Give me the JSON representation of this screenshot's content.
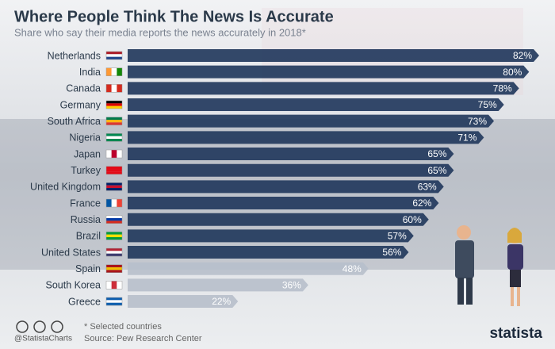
{
  "chart_data": {
    "type": "bar",
    "orientation": "horizontal",
    "title": "Where People Think The News Is Accurate",
    "subtitle": "Share who say their media reports the news accurately in 2018*",
    "categories": [
      "Netherlands",
      "India",
      "Canada",
      "Germany",
      "South Africa",
      "Nigeria",
      "Japan",
      "Turkey",
      "United Kingdom",
      "France",
      "Russia",
      "Brazil",
      "United States",
      "Spain",
      "South Korea",
      "Greece"
    ],
    "values": [
      82,
      80,
      78,
      75,
      73,
      71,
      65,
      65,
      63,
      62,
      60,
      57,
      56,
      48,
      36,
      22
    ],
    "value_labels": [
      "82%",
      "80%",
      "78%",
      "75%",
      "73%",
      "71%",
      "65%",
      "65%",
      "63%",
      "62%",
      "60%",
      "57%",
      "56%",
      "48%",
      "36%",
      "22%"
    ],
    "color": "#23395d",
    "note": "* Selected countries",
    "source": "Source: Pew Research Center",
    "credit": "@StatistaCharts",
    "brand": "statista"
  }
}
